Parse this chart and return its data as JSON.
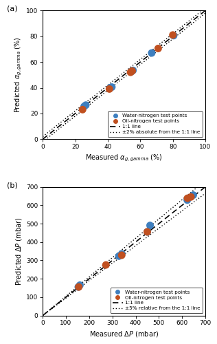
{
  "plot_a": {
    "water_x": [
      25.5,
      26.5,
      41.5,
      42.5,
      54.5,
      55.5,
      67.0,
      80.5
    ],
    "water_y": [
      25.5,
      26.5,
      40.0,
      40.5,
      52.5,
      53.5,
      67.0,
      80.5
    ],
    "oil_x": [
      24.5,
      41.0,
      54.0,
      55.0,
      71.0,
      80.0
    ],
    "oil_y": [
      23.0,
      39.0,
      52.0,
      53.0,
      70.5,
      81.0
    ],
    "xlim": [
      0,
      100
    ],
    "ylim": [
      0,
      100
    ],
    "xlabel": "Measured $\\alpha_{g,gamma}$ (%)",
    "ylabel": "Predicted $\\alpha_{g,gamma}$ (%)",
    "xticks": [
      0,
      20,
      40,
      60,
      80,
      100
    ],
    "yticks": [
      0,
      20,
      40,
      60,
      80,
      100
    ],
    "band": 2.0,
    "legend_label_water": "Water-nitrogen test points",
    "legend_label_oil": "Oil-nitrogen test points",
    "legend_label_11": "1:1 line",
    "legend_label_band": "±2% absolute from the 1:1 line",
    "panel_label": "(a)"
  },
  "plot_b": {
    "water_x": [
      153,
      160,
      328,
      340,
      450,
      462,
      622,
      648
    ],
    "water_y": [
      155,
      165,
      323,
      335,
      455,
      490,
      628,
      655
    ],
    "oil_x": [
      155,
      272,
      340,
      450,
      623,
      638
    ],
    "oil_y": [
      155,
      275,
      328,
      455,
      638,
      645
    ],
    "xlim": [
      0,
      700
    ],
    "ylim": [
      0,
      700
    ],
    "xlabel": "Measured $\\Delta P$ (mbar)",
    "ylabel": "Predicted $\\Delta P$ (mbar)",
    "xticks": [
      0,
      100,
      200,
      300,
      400,
      500,
      600,
      700
    ],
    "yticks": [
      0,
      100,
      200,
      300,
      400,
      500,
      600,
      700
    ],
    "band_rel": 0.05,
    "legend_label_water": "Water-nitrogen test points",
    "legend_label_oil": "Oil-nitrogen test points",
    "legend_label_11": "1:1 line",
    "legend_label_band": "±5% relative from the 1:1 line",
    "panel_label": "(b)"
  },
  "water_color": "#3E7FBF",
  "oil_color": "#C05020",
  "marker_size": 5,
  "bg_color": "#ffffff"
}
